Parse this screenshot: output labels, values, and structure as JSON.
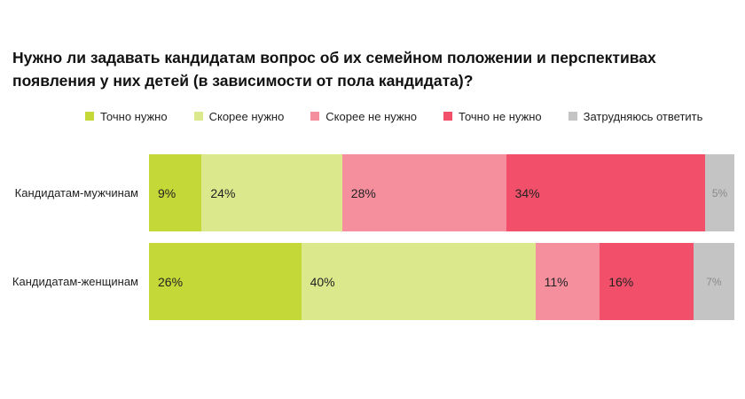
{
  "chart_data": {
    "type": "bar",
    "orientation": "horizontal",
    "stacked": true,
    "title": "Нужно ли задавать кандидатам вопрос об их семейном положении и перспективах появления у них детей (в зависимости от пола кандидата)?",
    "categories": [
      "Кандидатам-мужчинам",
      "Кандидатам-женщинам"
    ],
    "series": [
      {
        "name": "Точно нужно",
        "color": "#c4d838",
        "values": [
          9,
          26
        ],
        "labels": [
          "9%",
          "26%"
        ]
      },
      {
        "name": "Скорее нужно",
        "color": "#dce88c",
        "values": [
          24,
          40
        ],
        "labels": [
          "24%",
          "40%"
        ]
      },
      {
        "name": "Скорее не нужно",
        "color": "#f58f9e",
        "values": [
          28,
          11
        ],
        "labels": [
          "28%",
          "11%"
        ]
      },
      {
        "name": "Точно не нужно",
        "color": "#f2506a",
        "values": [
          34,
          16
        ],
        "labels": [
          "34%",
          "16%"
        ]
      },
      {
        "name": "Затрудняюсь ответить",
        "color": "#c4c4c4",
        "values": [
          5,
          7
        ],
        "labels": [
          "5%",
          "7%"
        ]
      }
    ],
    "legend_position": "top",
    "grid": false
  }
}
